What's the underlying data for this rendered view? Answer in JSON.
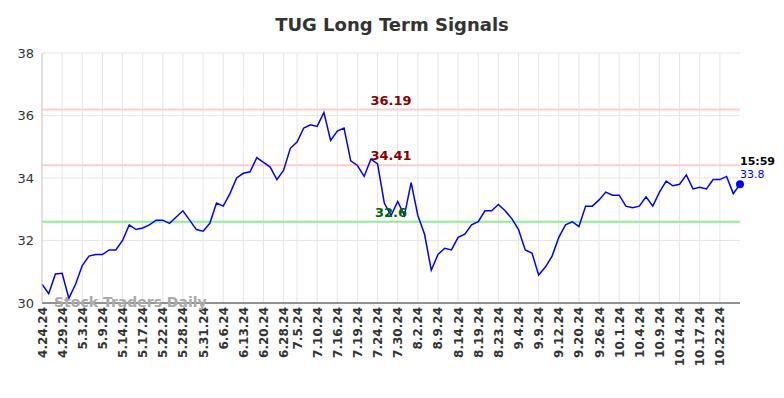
{
  "chart_data": {
    "type": "line",
    "title": "TUG Long Term Signals",
    "categories": [
      "4.24.24",
      null,
      null,
      "4.29.24",
      null,
      null,
      "5.3.24",
      null,
      null,
      "5.9.24",
      null,
      null,
      "5.14.24",
      null,
      null,
      "5.17.24",
      null,
      null,
      "5.22.24",
      null,
      null,
      "5.28.24",
      null,
      null,
      "5.31.24",
      null,
      null,
      "6.6.24",
      null,
      null,
      "6.13.24",
      null,
      null,
      "6.20.24",
      null,
      null,
      "6.28.24",
      null,
      "7.5.24",
      null,
      null,
      "7.10.24",
      null,
      null,
      "7.16.24",
      null,
      null,
      "7.19.24",
      null,
      null,
      "7.24.24",
      null,
      null,
      "7.30.24",
      null,
      null,
      "8.2.24",
      null,
      null,
      "8.9.24",
      null,
      null,
      "8.14.24",
      null,
      null,
      "8.19.24",
      null,
      null,
      "8.23.24",
      null,
      null,
      "9.4.24",
      null,
      null,
      "9.9.24",
      null,
      null,
      "9.12.24",
      null,
      null,
      "9.20.24",
      null,
      null,
      "9.26.24",
      null,
      null,
      "10.1.24",
      null,
      null,
      "10.4.24",
      null,
      null,
      "10.9.24",
      null,
      null,
      "10.14.24",
      null,
      null,
      "10.17.24",
      null,
      null,
      "10.22.24",
      null,
      null,
      null
    ],
    "values": [
      30.6,
      30.3,
      30.93,
      30.95,
      30.15,
      30.6,
      31.2,
      31.5,
      31.55,
      31.55,
      31.7,
      31.7,
      32.0,
      32.5,
      32.35,
      32.4,
      32.5,
      32.65,
      32.65,
      32.55,
      32.75,
      32.95,
      32.65,
      32.35,
      32.3,
      32.55,
      33.2,
      33.1,
      33.5,
      34.0,
      34.15,
      34.2,
      34.65,
      34.5,
      34.35,
      33.95,
      34.25,
      34.95,
      35.15,
      35.6,
      35.7,
      35.65,
      36.1,
      35.2,
      35.5,
      35.6,
      34.55,
      34.4,
      34.05,
      34.6,
      34.45,
      33.2,
      32.8,
      33.25,
      32.8,
      33.85,
      32.8,
      32.2,
      31.05,
      31.55,
      31.75,
      31.7,
      32.1,
      32.2,
      32.5,
      32.6,
      32.95,
      32.95,
      33.15,
      32.95,
      32.7,
      32.35,
      31.7,
      31.6,
      30.9,
      31.15,
      31.5,
      32.1,
      32.5,
      32.6,
      32.45,
      33.1,
      33.1,
      33.3,
      33.55,
      33.45,
      33.45,
      33.1,
      33.05,
      33.1,
      33.4,
      33.1,
      33.55,
      33.9,
      33.75,
      33.8,
      34.1,
      33.65,
      33.7,
      33.65,
      33.95,
      33.95,
      34.05,
      33.5,
      33.8
    ],
    "color": "#0000ff",
    "ylim": [
      30,
      38
    ],
    "yticks": [
      30,
      32,
      34,
      36,
      38
    ],
    "grid": true,
    "reference_lines": [
      {
        "value": 36.19,
        "color": "#ffcccc",
        "label_color": "#8b0000"
      },
      {
        "value": 34.41,
        "color": "#ffcccc",
        "label_color": "#8b0000"
      },
      {
        "value": 32.6,
        "color": "#90ee90",
        "label_color": "#006400"
      }
    ],
    "last_point_label": {
      "time": "15:59",
      "value": 33.8
    },
    "watermark": "Stock Traders Daily"
  }
}
